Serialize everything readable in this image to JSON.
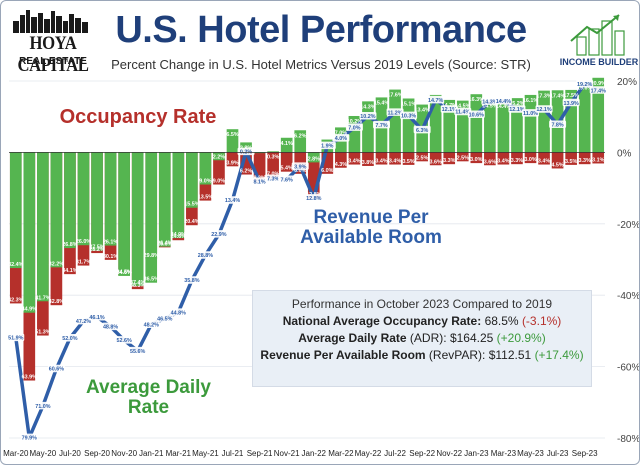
{
  "header": {
    "brand_title": "HOYA CAPITAL",
    "brand_subtitle": "REAL ESTATE",
    "title": "U.S. Hotel Performance",
    "subtitle": "Percent Change in U.S. Hotel Metrics Versus 2019 Levels (Source: STR)",
    "partner_logo_label": "INCOME BUILDER"
  },
  "callouts": {
    "occupancy": "Occupancy Rate",
    "revpar": "Revenue Per Available Room",
    "adr": "Average Daily Rate"
  },
  "summary": {
    "heading": "Performance in October 2023 Compared to 2019",
    "occupancy_label": "National Average Occupancy Rate:",
    "occupancy_value": "68.5%",
    "occupancy_change": "(-3.1%)",
    "adr_label": "Average Daily Rate",
    "adr_abbr": "(ADR):",
    "adr_value": "$164.25",
    "adr_change": "(+20.9%)",
    "revpar_label": "Revenue Per Available Room",
    "revpar_abbr": "(RevPAR):",
    "revpar_value": "$112.51",
    "revpar_change": "(+17.4%)"
  },
  "colors": {
    "occupancy": "#b5302b",
    "adr": "#55b550",
    "revpar": "#2f5ea8",
    "title": "#1f3f7a"
  },
  "chart_data": {
    "type": "bar",
    "title": "U.S. Hotel Performance",
    "ylim": [
      -80,
      20
    ],
    "y_ticks": [
      "20%",
      "0%",
      "-20%",
      "-40%",
      "-60%",
      "-80%"
    ],
    "y_tick_values": [
      20,
      0,
      -20,
      -40,
      -60,
      -80
    ],
    "x_tick_labels": [
      "Mar-20",
      "May-20",
      "Jul-20",
      "Sep-20",
      "Nov-20",
      "Jan-21",
      "Mar-21",
      "May-21",
      "Jul-21",
      "Sep-21",
      "Nov-21",
      "Jan-22",
      "Mar-22",
      "May-22",
      "Jul-22",
      "Sep-22",
      "Nov-22",
      "Jan-23",
      "Mar-23",
      "May-23",
      "Jul-23",
      "Sep-23"
    ],
    "months": [
      "Mar-20",
      "Apr-20",
      "May-20",
      "Jun-20",
      "Jul-20",
      "Aug-20",
      "Sep-20",
      "Oct-20",
      "Nov-20",
      "Dec-20",
      "Jan-21",
      "Feb-21",
      "Mar-21",
      "Apr-21",
      "May-21",
      "Jun-21",
      "Jul-21",
      "Aug-21",
      "Sep-21",
      "Oct-21",
      "Nov-21",
      "Dec-21",
      "Jan-22",
      "Feb-22",
      "Mar-22",
      "Apr-22",
      "May-22",
      "Jun-22",
      "Jul-22",
      "Aug-22",
      "Sep-22",
      "Oct-22",
      "Nov-22",
      "Dec-22",
      "Jan-23",
      "Feb-23",
      "Mar-23",
      "Apr-23",
      "May-23",
      "Jun-23",
      "Jul-23",
      "Aug-23",
      "Sep-23",
      "Oct-23"
    ],
    "series": [
      {
        "name": "Occupancy Rate",
        "values": [
          -42.3,
          -63.9,
          -51.3,
          -42.8,
          -34.1,
          -31.7,
          -28.2,
          -30.1,
          -34.5,
          -38.3,
          -29.8,
          -26.6,
          -24.6,
          -20.4,
          -13.5,
          -9.0,
          -3.9,
          -6.2,
          -8.2,
          -7.0,
          -5.4,
          -6.0,
          -12.8,
          -6.0,
          -4.3,
          -3.4,
          -3.8,
          -3.4,
          -3.4,
          -3.5,
          -2.5,
          -3.6,
          -3.3,
          -2.5,
          -3.0,
          -3.6,
          -3.4,
          -3.3,
          -3.0,
          -3.4,
          -4.5,
          -3.5,
          -3.3,
          -3.1
        ],
        "labels": [
          "42.3%",
          "63.9%",
          "51.3%",
          "42.8%",
          "34.1%",
          "31.7%",
          "28.2%",
          "30.1%",
          "34.5%",
          "38.3%",
          "29.8%",
          "26.6%",
          "24.6%",
          "20.4%",
          "13.5%",
          "9.0%",
          "3.9%",
          "6.2%",
          "8.2%",
          "7.0%",
          "5.4%",
          "6.0%",
          "12.8%",
          "6.0%",
          "4.3%",
          "3.4%",
          "3.8%",
          "3.4%",
          "3.4%",
          "3.5%",
          "2.5%",
          "3.6%",
          "3.3%",
          "2.5%",
          "3.0%",
          "3.6%",
          "3.4%",
          "3.3%",
          "3.0%",
          "3.4%",
          "4.5%",
          "3.5%",
          "3.3%",
          "3.1%"
        ]
      },
      {
        "name": "Average Daily Rate",
        "values": [
          -32.4,
          -44.9,
          -41.7,
          -32.2,
          -26.8,
          -26.0,
          -27.5,
          -26.1,
          -34.6,
          -37.4,
          -36.5,
          -26.4,
          -24.0,
          -15.5,
          -9.0,
          -2.2,
          6.5,
          2.8,
          -0.2,
          0.3,
          4.1,
          6.2,
          -2.8,
          3.6,
          7.0,
          10.2,
          14.3,
          15.4,
          17.6,
          15.1,
          13.4,
          16.1,
          14.7,
          14.5,
          16.3,
          14.5,
          14.4,
          15.2,
          16.1,
          17.3,
          17.4,
          17.5,
          19.6,
          20.9
        ],
        "labels": [
          "32.4%",
          "44.9%",
          "41.7%",
          "32.2%",
          "26.8%",
          "26.0%",
          "27.5%",
          "26.1%",
          "34.6%",
          "37.4%",
          "36.5%",
          "26.4%",
          "24.0%",
          "15.5%",
          "9.0%",
          "2.2%",
          "6.5%",
          "2.8%",
          "0.2%",
          "0.3%",
          "4.1%",
          "6.2%",
          "2.8%",
          "3.6%",
          "7.0%",
          "10.2%",
          "14.3%",
          "15.4%",
          "17.6%",
          "15.1%",
          "13.4%",
          "16.1%",
          "14.7%",
          "14.5%",
          "16.3%",
          "14.5%",
          "14.4%",
          "15.2%",
          "16.1%",
          "17.3%",
          "17.4%",
          "17.5%",
          "19.6%",
          "20.9%"
        ]
      },
      {
        "name": "Revenue Per Available Room",
        "values": [
          -51.9,
          -79.9,
          -71.0,
          -60.6,
          -52.0,
          -47.2,
          -46.1,
          -48.8,
          -52.6,
          -55.6,
          -48.2,
          -46.5,
          -44.8,
          -35.8,
          -28.8,
          -22.9,
          -13.4,
          0.2,
          -8.1,
          -7.3,
          -7.6,
          -3.9,
          -12.8,
          1.9,
          4.0,
          7.0,
          10.2,
          7.7,
          11.2,
          10.3,
          6.3,
          14.7,
          12.1,
          11.4,
          10.6,
          14.3,
          14.4,
          12.1,
          11.0,
          12.1,
          7.8,
          13.9,
          19.2,
          17.4
        ],
        "labels": [
          "51.9%",
          "79.9%",
          "71.0%",
          "60.6%",
          "52.0%",
          "47.2%",
          "46.1%",
          "48.8%",
          "52.6%",
          "55.6%",
          "48.2%",
          "46.5%",
          "44.8%",
          "35.8%",
          "28.8%",
          "22.9%",
          "13.4%",
          "0.2%",
          "8.1%",
          "7.3%",
          "7.6%",
          "3.9%",
          "12.8%",
          "1.9%",
          "4.0%",
          "7.0%",
          "10.2%",
          "7.7%",
          "11.2%",
          "10.3%",
          "6.3%",
          "14.7%",
          "12.1%",
          "11.4%",
          "10.6%",
          "14.3%",
          "14.4%",
          "12.1%",
          "11.0%",
          "12.1%",
          "7.8%",
          "13.9%",
          "19.2%",
          "17.4%"
        ]
      }
    ]
  }
}
